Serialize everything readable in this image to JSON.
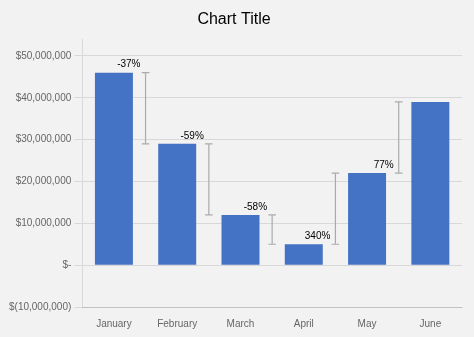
{
  "chart_data": {
    "type": "bar",
    "title": "Chart Title",
    "categories": [
      "January",
      "February",
      "March",
      "April",
      "May",
      "June"
    ],
    "values": [
      46000000,
      29000000,
      12000000,
      5000000,
      22000000,
      39000000
    ],
    "color": "#4472C4",
    "ylim": [
      -10000000,
      54000000
    ],
    "yticks": [
      {
        "value": -10000000,
        "label": "$(10,000,000)"
      },
      {
        "value": 0,
        "label": "$-"
      },
      {
        "value": 10000000,
        "label": "$10,000,000"
      },
      {
        "value": 20000000,
        "label": "$20,000,000"
      },
      {
        "value": 30000000,
        "label": "$30,000,000"
      },
      {
        "value": 40000000,
        "label": "$40,000,000"
      },
      {
        "value": 50000000,
        "label": "$50,000,000"
      }
    ],
    "grid": true,
    "annotations": [
      "-37%",
      "-59%",
      "-58%",
      "340%",
      "77%"
    ]
  }
}
